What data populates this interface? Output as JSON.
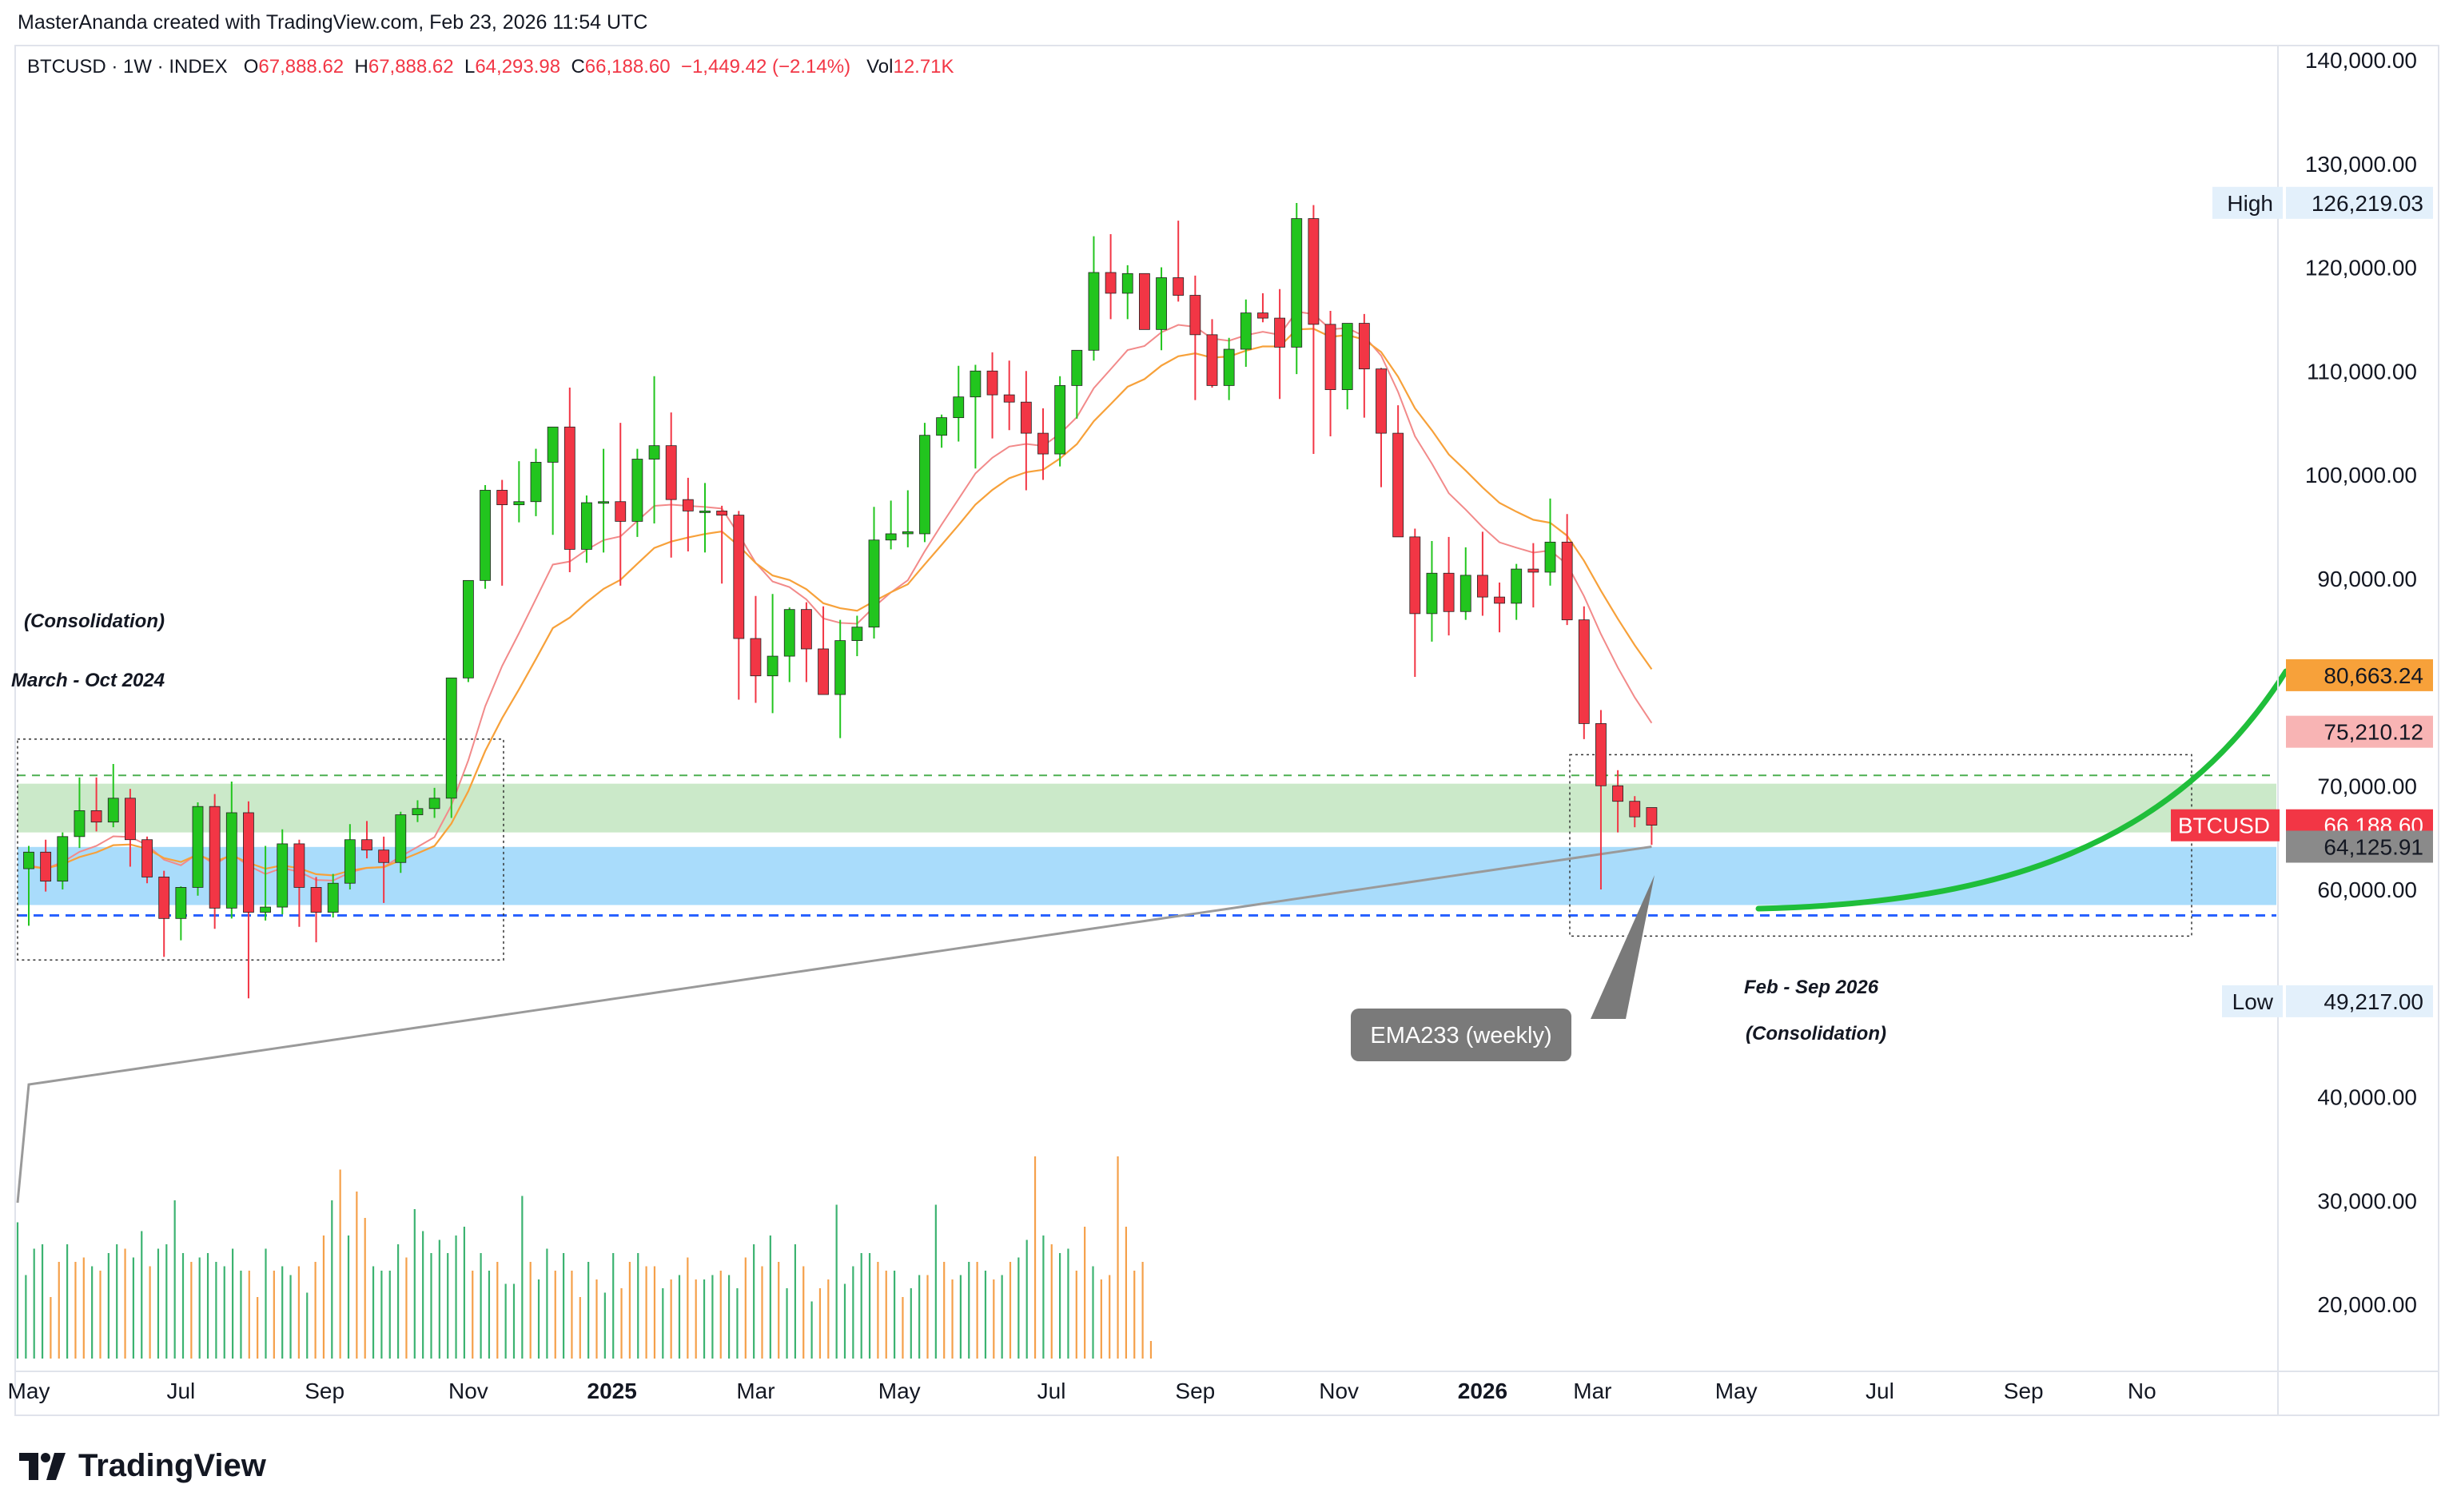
{
  "header": {
    "text": "MasterAnanda created with TradingView.com, Feb 23, 2026 11:54 UTC"
  },
  "ohlc": {
    "symbol": "BTCUSD · 1W · INDEX",
    "o_label": "O",
    "o_value": "67,888.62",
    "h_label": "H",
    "h_value": "67,888.62",
    "l_label": "L",
    "l_value": "64,293.98",
    "c_label": "C",
    "c_value": "66,188.60",
    "change": "−1,449.42 (−2.14%)",
    "vol_label": "Vol",
    "vol_value": "12.71K"
  },
  "annotations": {
    "left_title": "(Consolidation)",
    "left_range": "March - Oct 2024",
    "right_range": "Feb - Sep 2026",
    "right_title": "(Consolidation)",
    "ema_callout": "EMA233 (weekly)"
  },
  "price_labels": {
    "high_tag": "High",
    "high_value": "126,219.03",
    "low_tag": "Low",
    "low_value": "49,217.00",
    "ema_a_value": "80,663.24",
    "ema_b_value": "75,210.12",
    "symbol_tag": "BTCUSD",
    "last_value": "66,188.60",
    "ema233_value": "64,125.91"
  },
  "colors": {
    "up": "#22c51e",
    "down": "#f23645",
    "vol_up": "#3cb371",
    "vol_down": "#f5a04a",
    "ema_a": "#f7a13a",
    "ema_b": "#f28a8a",
    "ema233": "#9a9a9a",
    "green_zone": "#cbe9c9",
    "blue_zone": "#a9dcfb",
    "curve": "#1fbe3a"
  },
  "footer": {
    "brand": "TradingView"
  },
  "chart_data": {
    "type": "candlestick",
    "timeframe": "1W",
    "y_axis": {
      "ticks": [
        "140,000.00",
        "130,000.00",
        "120,000.00",
        "110,000.00",
        "100,000.00",
        "90,000.00",
        "70,000.00",
        "60,000.00",
        "40,000.00",
        "30,000.00",
        "20,000.00"
      ],
      "tick_values": [
        140000,
        130000,
        120000,
        110000,
        100000,
        90000,
        70000,
        60000,
        40000,
        30000,
        20000
      ],
      "range": [
        15000,
        142000
      ]
    },
    "x_axis": {
      "labels": [
        "May",
        "Jul",
        "Sep",
        "Nov",
        "2025",
        "Mar",
        "May",
        "Jul",
        "Sep",
        "Nov",
        "2026",
        "Mar",
        "May",
        "Jul",
        "Sep",
        "No"
      ],
      "bold": [
        false,
        false,
        false,
        false,
        true,
        false,
        false,
        false,
        false,
        false,
        true,
        false,
        false,
        false,
        false,
        false
      ],
      "week_index": [
        0,
        9,
        17.5,
        26,
        34.5,
        43,
        51.5,
        60.5,
        69,
        77.5,
        86,
        92.5,
        101,
        109.5,
        118,
        125
      ]
    },
    "zones": {
      "green": [
        65500,
        70200
      ],
      "blue": [
        58500,
        64100
      ],
      "green_dashed": 71000,
      "blue_dashed": 57500
    },
    "candles": [
      [
        62000,
        64200,
        56500,
        63600
      ],
      [
        63600,
        64800,
        59800,
        60800
      ],
      [
        60800,
        65500,
        60000,
        65100
      ],
      [
        65100,
        70800,
        64000,
        67600
      ],
      [
        67600,
        70800,
        65600,
        66500
      ],
      [
        66500,
        72100,
        66000,
        68800
      ],
      [
        68800,
        69700,
        62200,
        64800
      ],
      [
        64800,
        65100,
        60600,
        61200
      ],
      [
        61200,
        61800,
        53500,
        57200
      ],
      [
        57200,
        60300,
        55100,
        60200
      ],
      [
        60200,
        68400,
        59400,
        68000
      ],
      [
        68000,
        69200,
        56200,
        58200
      ],
      [
        58200,
        70400,
        57200,
        67400
      ],
      [
        67400,
        68500,
        49500,
        57800
      ],
      [
        57800,
        64200,
        57000,
        58300
      ],
      [
        58300,
        65800,
        57600,
        64400
      ],
      [
        64400,
        64800,
        56400,
        60200
      ],
      [
        60200,
        61200,
        54900,
        57800
      ],
      [
        57800,
        61500,
        57300,
        60600
      ],
      [
        60600,
        66300,
        60000,
        64800
      ],
      [
        64800,
        66600,
        63000,
        63800
      ],
      [
        63800,
        65100,
        58700,
        62600
      ],
      [
        62600,
        67500,
        61600,
        67200
      ],
      [
        67200,
        68600,
        66500,
        67800
      ],
      [
        67800,
        69800,
        66900,
        68800
      ],
      [
        68800,
        80400,
        66900,
        80400
      ],
      [
        80400,
        89800,
        80000,
        89800
      ],
      [
        89800,
        99000,
        89000,
        98500
      ],
      [
        98500,
        99500,
        89300,
        97100
      ],
      [
        97100,
        101300,
        95400,
        97400
      ],
      [
        97400,
        102500,
        96000,
        101200
      ],
      [
        101200,
        104600,
        94200,
        104600
      ],
      [
        104600,
        108400,
        90600,
        92800
      ],
      [
        92800,
        98000,
        91500,
        97300
      ],
      [
        97300,
        102500,
        92500,
        97400
      ],
      [
        97400,
        105000,
        89300,
        95500
      ],
      [
        95500,
        102500,
        94000,
        101500
      ],
      [
        101500,
        109500,
        95300,
        102800
      ],
      [
        102800,
        106000,
        92000,
        97600
      ],
      [
        97600,
        99700,
        92600,
        96500
      ],
      [
        96500,
        99200,
        92500,
        96500
      ],
      [
        96500,
        97000,
        89500,
        96100
      ],
      [
        96100,
        96500,
        78300,
        84200
      ],
      [
        84200,
        88300,
        78000,
        80600
      ],
      [
        80600,
        88500,
        77000,
        82500
      ],
      [
        82500,
        87200,
        80000,
        87000
      ],
      [
        87000,
        87700,
        80000,
        83200
      ],
      [
        83200,
        87300,
        79500,
        78800
      ],
      [
        78800,
        86000,
        74600,
        84000
      ],
      [
        84000,
        86400,
        82500,
        85300
      ],
      [
        85300,
        96900,
        84200,
        93700
      ],
      [
        93700,
        97500,
        92800,
        94300
      ],
      [
        94300,
        98500,
        93000,
        94500
      ],
      [
        94300,
        105000,
        93500,
        103800
      ],
      [
        103800,
        105800,
        102600,
        105500
      ],
      [
        105500,
        110500,
        103200,
        107500
      ],
      [
        107500,
        110600,
        100600,
        110000
      ],
      [
        110000,
        111800,
        103500,
        107700
      ],
      [
        107700,
        111000,
        104300,
        107000
      ],
      [
        107000,
        110000,
        98500,
        104000
      ],
      [
        104000,
        106400,
        99500,
        102000
      ],
      [
        102000,
        109500,
        100800,
        108600
      ],
      [
        108600,
        111800,
        105400,
        112000
      ],
      [
        112000,
        123000,
        111000,
        119500
      ],
      [
        119500,
        123200,
        115000,
        117500
      ],
      [
        117500,
        120200,
        115000,
        119400
      ],
      [
        119400,
        119400,
        114000,
        114000
      ],
      [
        114000,
        120000,
        112000,
        119000
      ],
      [
        119000,
        124500,
        116700,
        117300
      ],
      [
        117300,
        119200,
        107200,
        113500
      ],
      [
        113500,
        115000,
        108400,
        108600
      ],
      [
        108600,
        113200,
        107200,
        112100
      ],
      [
        112100,
        116900,
        110400,
        115600
      ],
      [
        115600,
        117500,
        114700,
        115100
      ],
      [
        115100,
        117900,
        107300,
        112300
      ],
      [
        112300,
        126200,
        109700,
        124700
      ],
      [
        124700,
        126000,
        102000,
        114500
      ],
      [
        114500,
        115800,
        103700,
        108200
      ],
      [
        108200,
        114600,
        106300,
        114600
      ],
      [
        114600,
        115500,
        105500,
        110200
      ],
      [
        110200,
        110300,
        98800,
        104000
      ],
      [
        104000,
        106700,
        94000,
        94000
      ],
      [
        94000,
        94800,
        80500,
        86600
      ],
      [
        86600,
        93600,
        83900,
        90500
      ],
      [
        90500,
        94000,
        84500,
        86800
      ],
      [
        86800,
        93000,
        86000,
        90300
      ],
      [
        90300,
        94500,
        86400,
        88200
      ],
      [
        88200,
        89600,
        84800,
        87600
      ],
      [
        87600,
        91400,
        86000,
        90900
      ],
      [
        90900,
        93400,
        87200,
        90600
      ],
      [
        90600,
        97700,
        89300,
        93500
      ],
      [
        93500,
        96200,
        85500,
        86000
      ],
      [
        86000,
        87300,
        74500,
        76000
      ],
      [
        76000,
        77300,
        60000,
        70000
      ],
      [
        70000,
        71500,
        65500,
        68500
      ],
      [
        68500,
        69000,
        66000,
        67000
      ],
      [
        67900,
        67900,
        64300,
        66200
      ]
    ],
    "volume": [
      31,
      19,
      25,
      26,
      14,
      22,
      26,
      22,
      23,
      21,
      20,
      24,
      26,
      25,
      23,
      29,
      21,
      25,
      26,
      36,
      24,
      22,
      23,
      24,
      22,
      21,
      25,
      20,
      20,
      14,
      25,
      20,
      21,
      19,
      21,
      15,
      22,
      28,
      36,
      43,
      28,
      38,
      32,
      21,
      20,
      20,
      26,
      23,
      34,
      29,
      24,
      27,
      24,
      28,
      30,
      20,
      24,
      20,
      22,
      17,
      17,
      37,
      22,
      18,
      25,
      20,
      24,
      20,
      14,
      22,
      18,
      15,
      24,
      16,
      22,
      24,
      21,
      21,
      16,
      18,
      19,
      23,
      18,
      18,
      19,
      20,
      19,
      16,
      23,
      26,
      21,
      28,
      22,
      16,
      26,
      21,
      13,
      16,
      18,
      35,
      17,
      21,
      24,
      24,
      22,
      20,
      20,
      14,
      16,
      19,
      19,
      35,
      22,
      18,
      19,
      22,
      22,
      20,
      18,
      19,
      22,
      23,
      27,
      46,
      28,
      26,
      24,
      25,
      20,
      30,
      21,
      18,
      19,
      46,
      30,
      20,
      22,
      4
    ],
    "volume_up": [
      1,
      1,
      1,
      1,
      0,
      0,
      1,
      0,
      0,
      1,
      0,
      1,
      1,
      0,
      1,
      1,
      0,
      1,
      1,
      1,
      1,
      0,
      1,
      1,
      1,
      1,
      1,
      1,
      0,
      0,
      1,
      0,
      1,
      1,
      0,
      1,
      0,
      0,
      1,
      0,
      1,
      0,
      0,
      1,
      1,
      1,
      1,
      0,
      1,
      1,
      1,
      1,
      1,
      1,
      1,
      0,
      1,
      1,
      0,
      1,
      1,
      1,
      0,
      1,
      1,
      0,
      1,
      0,
      0,
      1,
      0,
      1,
      1,
      0,
      0,
      1,
      0,
      0,
      1,
      0,
      1,
      0,
      0,
      1,
      1,
      0,
      1,
      1,
      0,
      1,
      0,
      1,
      0,
      1,
      1,
      0,
      1,
      0,
      0,
      1,
      1,
      1,
      1,
      1,
      0,
      0,
      1,
      0,
      1,
      1,
      0,
      1,
      0,
      0,
      1,
      1,
      0,
      1,
      0,
      1,
      0,
      1,
      1,
      0,
      1,
      0,
      1,
      1,
      0,
      0,
      1,
      0,
      0,
      0,
      0,
      0,
      0,
      0
    ],
    "ema_fast_label": "75,210.12",
    "ema_slow_label": "80,663.24",
    "ema233_label": "64,125.91",
    "high": 126219.03,
    "low": 49217.0,
    "last": 66188.6
  }
}
